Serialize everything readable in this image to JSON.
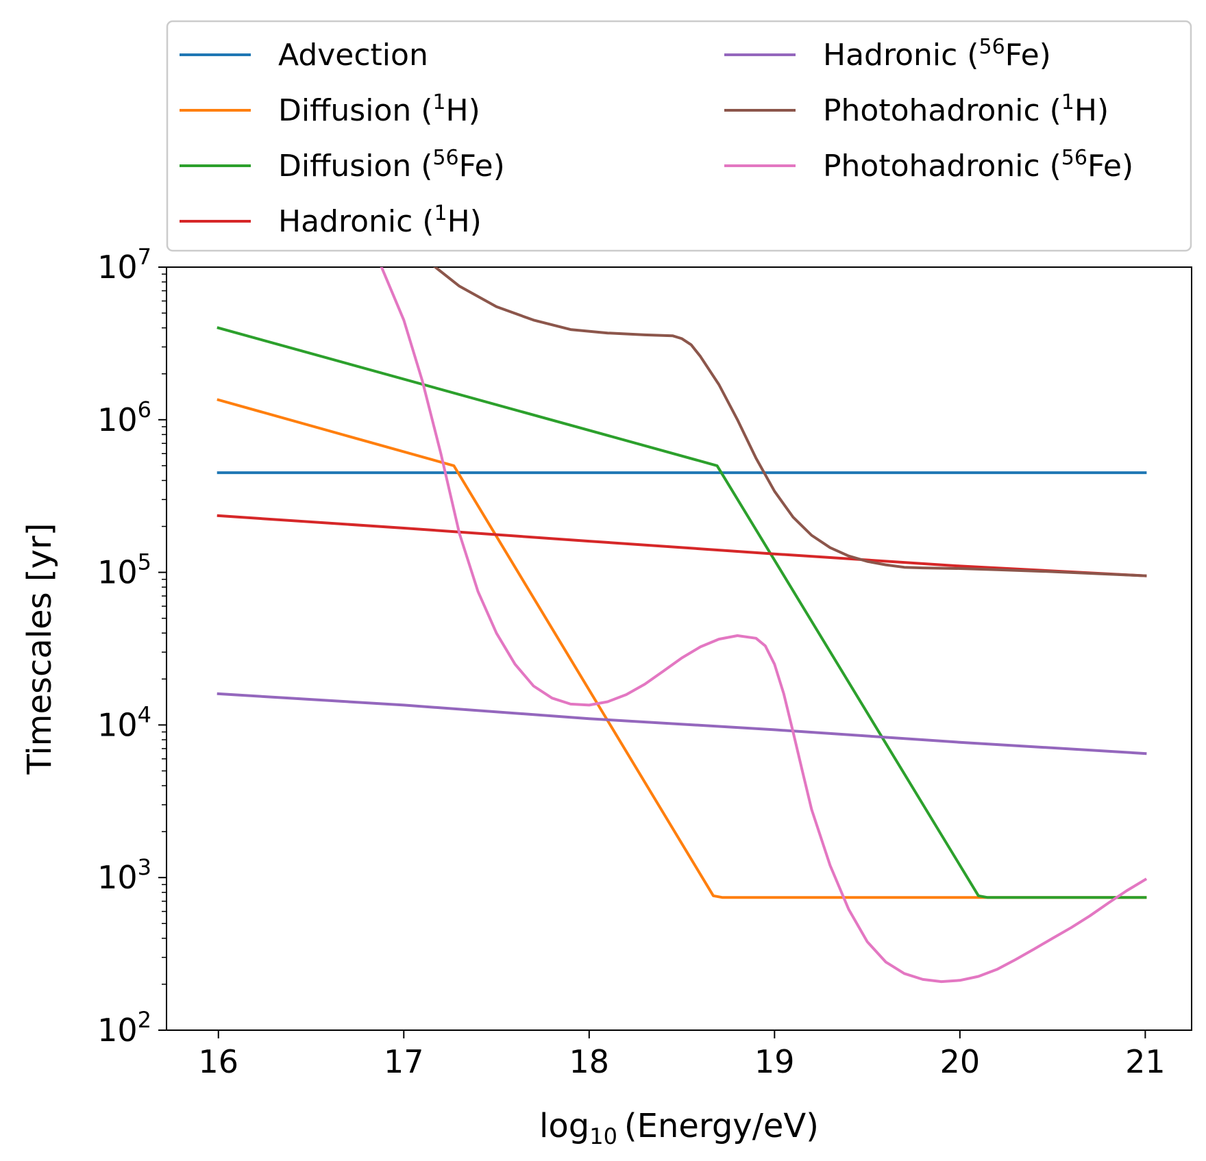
{
  "chart_data": {
    "type": "line",
    "xlabel": {
      "pre": "log",
      "sub": "10",
      "post": "(Energy/eV)"
    },
    "ylabel": "Timescales [yr]",
    "xlim": [
      15.72,
      21.25
    ],
    "ylim": [
      100,
      10000000
    ],
    "yscale": "log",
    "grid": false,
    "legend_position": "above plot, two columns",
    "x_ticks": [
      16,
      17,
      18,
      19,
      20,
      21
    ],
    "y_ticks": [
      {
        "value": 100,
        "base": "10",
        "exp": "2"
      },
      {
        "value": 1000,
        "base": "10",
        "exp": "3"
      },
      {
        "value": 10000,
        "base": "10",
        "exp": "4"
      },
      {
        "value": 100000,
        "base": "10",
        "exp": "5"
      },
      {
        "value": 1000000,
        "base": "10",
        "exp": "6"
      },
      {
        "value": 10000000,
        "base": "10",
        "exp": "7"
      }
    ],
    "series": [
      {
        "name": "Advection",
        "label_pre": "Advection",
        "label_sup": "",
        "label_post": "",
        "color": "#1f77b4",
        "points": [
          [
            16,
            450000
          ],
          [
            21,
            450000
          ]
        ]
      },
      {
        "name": "Diffusion (1H)",
        "label_pre": "Diffusion (",
        "label_sup": "1",
        "label_post": "H)",
        "color": "#ff7f0e",
        "points": [
          [
            16,
            1350000
          ],
          [
            17.27,
            500000
          ],
          [
            18.67,
            760
          ],
          [
            18.72,
            740
          ],
          [
            20.1,
            740
          ],
          [
            21,
            740
          ]
        ]
      },
      {
        "name": "Diffusion (56Fe)",
        "label_pre": "Diffusion (",
        "label_sup": "56",
        "label_post": "Fe)",
        "color": "#2ca02c",
        "points": [
          [
            16,
            4000000
          ],
          [
            18.69,
            500000
          ],
          [
            20.1,
            760
          ],
          [
            20.15,
            740
          ],
          [
            21,
            740
          ]
        ]
      },
      {
        "name": "Hadronic (1H)",
        "label_pre": "Hadronic (",
        "label_sup": "1",
        "label_post": "H)",
        "color": "#d62728",
        "points": [
          [
            16,
            235000
          ],
          [
            17,
            195000
          ],
          [
            18,
            160000
          ],
          [
            19,
            132000
          ],
          [
            20,
            110000
          ],
          [
            21,
            95000
          ]
        ]
      },
      {
        "name": "Hadronic (56Fe)",
        "label_pre": "Hadronic (",
        "label_sup": "56",
        "label_post": "Fe)",
        "color": "#9467bd",
        "points": [
          [
            16,
            16000
          ],
          [
            17,
            13500
          ],
          [
            18,
            11000
          ],
          [
            19,
            9300
          ],
          [
            20,
            7700
          ],
          [
            21,
            6500
          ]
        ]
      },
      {
        "name": "Photohadronic (1H)",
        "label_pre": "Photohadronic (",
        "label_sup": "1",
        "label_post": "H)",
        "color": "#8c564b",
        "points": [
          [
            17.17,
            10000000
          ],
          [
            17.3,
            7500000
          ],
          [
            17.5,
            5500000
          ],
          [
            17.7,
            4500000
          ],
          [
            17.9,
            3900000
          ],
          [
            18.1,
            3700000
          ],
          [
            18.3,
            3600000
          ],
          [
            18.45,
            3550000
          ],
          [
            18.5,
            3400000
          ],
          [
            18.55,
            3100000
          ],
          [
            18.6,
            2600000
          ],
          [
            18.7,
            1700000
          ],
          [
            18.8,
            1000000
          ],
          [
            18.9,
            560000
          ],
          [
            19.0,
            340000
          ],
          [
            19.1,
            230000
          ],
          [
            19.2,
            175000
          ],
          [
            19.3,
            145000
          ],
          [
            19.4,
            128000
          ],
          [
            19.5,
            118000
          ],
          [
            19.6,
            112000
          ],
          [
            19.7,
            108000
          ],
          [
            19.8,
            107000
          ],
          [
            20.0,
            106000
          ],
          [
            20.2,
            104000
          ],
          [
            20.5,
            101000
          ],
          [
            21,
            95000
          ]
        ]
      },
      {
        "name": "Photohadronic (56Fe)",
        "label_pre": "Photohadronic (",
        "label_sup": "56",
        "label_post": "Fe)",
        "color": "#e377c2",
        "points": [
          [
            16.88,
            10000000
          ],
          [
            17.0,
            4500000
          ],
          [
            17.1,
            1800000
          ],
          [
            17.2,
            600000
          ],
          [
            17.3,
            180000
          ],
          [
            17.4,
            75000
          ],
          [
            17.5,
            40000
          ],
          [
            17.6,
            25000
          ],
          [
            17.7,
            18000
          ],
          [
            17.8,
            15000
          ],
          [
            17.9,
            13700
          ],
          [
            18.0,
            13500
          ],
          [
            18.1,
            14200
          ],
          [
            18.2,
            15800
          ],
          [
            18.3,
            18500
          ],
          [
            18.4,
            22500
          ],
          [
            18.5,
            27500
          ],
          [
            18.6,
            32500
          ],
          [
            18.7,
            36500
          ],
          [
            18.8,
            38500
          ],
          [
            18.9,
            37000
          ],
          [
            18.95,
            33000
          ],
          [
            19.0,
            25000
          ],
          [
            19.05,
            16000
          ],
          [
            19.1,
            9000
          ],
          [
            19.15,
            5000
          ],
          [
            19.2,
            2800
          ],
          [
            19.3,
            1200
          ],
          [
            19.4,
            620
          ],
          [
            19.5,
            380
          ],
          [
            19.6,
            280
          ],
          [
            19.7,
            235
          ],
          [
            19.8,
            215
          ],
          [
            19.9,
            208
          ],
          [
            20.0,
            212
          ],
          [
            20.1,
            225
          ],
          [
            20.2,
            250
          ],
          [
            20.3,
            290
          ],
          [
            20.4,
            340
          ],
          [
            20.5,
            400
          ],
          [
            20.6,
            470
          ],
          [
            20.7,
            560
          ],
          [
            20.8,
            680
          ],
          [
            20.9,
            820
          ],
          [
            21.0,
            970
          ]
        ]
      }
    ]
  }
}
